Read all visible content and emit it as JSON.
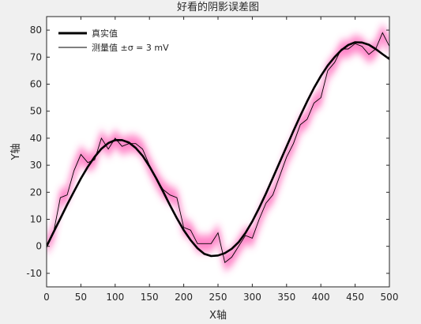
{
  "chart_data": {
    "type": "line",
    "title": "好看的阴影误差图",
    "xlabel": "X轴",
    "ylabel": "Y轴",
    "xlim": [
      0,
      500
    ],
    "ylim": [
      -15,
      85
    ],
    "xticks": [
      "0",
      "50",
      "100",
      "150",
      "200",
      "250",
      "300",
      "350",
      "400",
      "450",
      "500"
    ],
    "yticks": [
      "-10",
      "0",
      "10",
      "20",
      "30",
      "40",
      "50",
      "60",
      "70",
      "80"
    ],
    "grid": false,
    "legend_location": "top-left",
    "legend": {
      "true_label": "真实值",
      "measured_label": "测量值 ±σ = 3 mV"
    },
    "shade_color": "#ff4fb0",
    "true_color": "#000000",
    "measured_color": "#000000",
    "series": [
      {
        "name": "真实值",
        "x": [
          0,
          10,
          20,
          30,
          40,
          50,
          60,
          70,
          80,
          90,
          100,
          110,
          120,
          130,
          140,
          150,
          160,
          170,
          180,
          190,
          200,
          210,
          220,
          230,
          240,
          250,
          260,
          270,
          280,
          290,
          300,
          310,
          320,
          330,
          340,
          350,
          360,
          370,
          380,
          390,
          400,
          410,
          420,
          430,
          440,
          450,
          460,
          470,
          480,
          490,
          500
        ],
        "y": [
          0,
          5.2,
          10.3,
          15.4,
          20.3,
          25.1,
          29.4,
          33.1,
          36.1,
          38.2,
          39.3,
          39.3,
          38.4,
          36.4,
          33.5,
          29.6,
          25.1,
          20.2,
          15.2,
          10.4,
          6.0,
          2.3,
          -0.7,
          -2.8,
          -3.6,
          -3.4,
          -2.5,
          -0.9,
          1.5,
          4.9,
          9.2,
          14.2,
          19.6,
          25.3,
          31.1,
          36.9,
          42.7,
          48.3,
          53.6,
          58.6,
          63.0,
          66.9,
          70.0,
          72.6,
          74.5,
          75.5,
          75.4,
          74.6,
          73.0,
          71.1,
          69.3
        ]
      },
      {
        "name": "测量值 ±σ = 3 mV",
        "x": [
          0,
          10,
          20,
          30,
          40,
          50,
          60,
          70,
          80,
          90,
          100,
          110,
          120,
          130,
          140,
          150,
          160,
          170,
          180,
          190,
          200,
          210,
          220,
          230,
          240,
          250,
          260,
          270,
          280,
          290,
          300,
          310,
          320,
          330,
          340,
          350,
          360,
          370,
          380,
          390,
          400,
          410,
          420,
          430,
          440,
          450,
          460,
          470,
          480,
          490,
          500
        ],
        "y": [
          0,
          5,
          18,
          19,
          28,
          34,
          31,
          32,
          40,
          36,
          40,
          37,
          38,
          38,
          36,
          30,
          25,
          21,
          19,
          18,
          7,
          6,
          1,
          1,
          1,
          5,
          -6,
          -4,
          0,
          4,
          3,
          10,
          16,
          19,
          26,
          33,
          38,
          45,
          47,
          53,
          55,
          65,
          68,
          73,
          73,
          75,
          74,
          71,
          73,
          79,
          74
        ]
      }
    ]
  }
}
